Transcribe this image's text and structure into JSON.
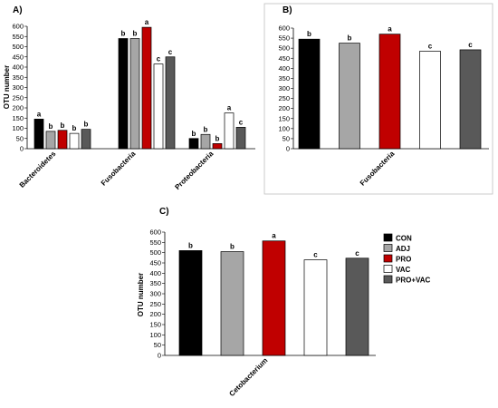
{
  "legend": [
    {
      "name": "CON",
      "color": "#000000"
    },
    {
      "name": "ADJ",
      "color": "#a6a6a6"
    },
    {
      "name": "PRO",
      "color": "#c00000"
    },
    {
      "name": "VAC",
      "color": "#ffffff"
    },
    {
      "name": "PRO+VAC",
      "color": "#595959"
    }
  ],
  "chart_data": [
    {
      "panel": "A)",
      "type": "bar",
      "ylabel": "OTU number",
      "ylim": [
        0,
        600
      ],
      "yticks": [
        0,
        50,
        100,
        150,
        200,
        250,
        300,
        350,
        400,
        450,
        500,
        550,
        600
      ],
      "categories": [
        "Bacteroidetes",
        "Fusobacteria",
        "Proteobacteria"
      ],
      "series": [
        {
          "name": "CON",
          "values": [
            145,
            540,
            50
          ],
          "letters": [
            "a",
            "b",
            "b"
          ]
        },
        {
          "name": "ADJ",
          "values": [
            85,
            540,
            70
          ],
          "letters": [
            "b",
            "b",
            "b"
          ]
        },
        {
          "name": "PRO",
          "values": [
            90,
            595,
            25
          ],
          "letters": [
            "b",
            "a",
            "b"
          ]
        },
        {
          "name": "VAC",
          "values": [
            75,
            415,
            175
          ],
          "letters": [
            "b",
            "c",
            "a"
          ]
        },
        {
          "name": "PRO+VAC",
          "values": [
            95,
            450,
            105
          ],
          "letters": [
            "b",
            "c",
            "c"
          ]
        }
      ]
    },
    {
      "panel": "B)",
      "type": "bar",
      "ylabel": "",
      "ylim": [
        0,
        600
      ],
      "yticks": [
        0,
        50,
        100,
        150,
        200,
        250,
        300,
        350,
        400,
        450,
        500,
        550,
        600
      ],
      "categories": [
        "Fusobacteria"
      ],
      "series": [
        {
          "name": "CON",
          "values": [
            545
          ],
          "letters": [
            "b"
          ]
        },
        {
          "name": "ADJ",
          "values": [
            525
          ],
          "letters": [
            "b"
          ]
        },
        {
          "name": "PRO",
          "values": [
            570
          ],
          "letters": [
            "a"
          ]
        },
        {
          "name": "VAC",
          "values": [
            485
          ],
          "letters": [
            "c"
          ]
        },
        {
          "name": "PRO+VAC",
          "values": [
            492
          ],
          "letters": [
            "c"
          ]
        }
      ]
    },
    {
      "panel": "C)",
      "type": "bar",
      "ylabel": "OTU number",
      "ylim": [
        0,
        600
      ],
      "yticks": [
        0,
        50,
        100,
        150,
        200,
        250,
        300,
        350,
        400,
        450,
        500,
        550,
        600
      ],
      "categories": [
        "Cetobacterium"
      ],
      "series": [
        {
          "name": "CON",
          "values": [
            510
          ],
          "letters": [
            "b"
          ]
        },
        {
          "name": "ADJ",
          "values": [
            505
          ],
          "letters": [
            "b"
          ]
        },
        {
          "name": "PRO",
          "values": [
            557
          ],
          "letters": [
            "a"
          ]
        },
        {
          "name": "VAC",
          "values": [
            465
          ],
          "letters": [
            "c"
          ]
        },
        {
          "name": "PRO+VAC",
          "values": [
            473
          ],
          "letters": [
            "c"
          ]
        }
      ]
    }
  ]
}
